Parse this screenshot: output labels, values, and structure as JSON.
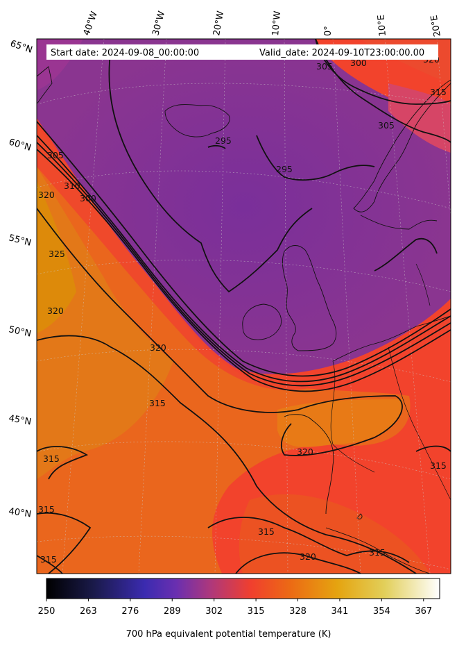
{
  "header": {
    "start_date": "Start date: 2024-09-08_00:00:00",
    "valid_date": "Valid_date: 2024-09-10T23:00:00.00"
  },
  "map": {
    "projection": "conic",
    "longitude_labels": [
      "40°W",
      "30°W",
      "20°W",
      "10°W",
      "0°",
      "10°E",
      "20°E"
    ],
    "latitude_labels": [
      "65°N",
      "60°N",
      "55°N",
      "50°N",
      "45°N",
      "40°N"
    ],
    "contour_labels": [
      "295",
      "295",
      "300",
      "305",
      "305",
      "310",
      "315",
      "315",
      "315",
      "315",
      "315",
      "315",
      "315",
      "320",
      "320",
      "320",
      "320",
      "320",
      "325",
      "305",
      "320",
      "300",
      "315"
    ],
    "field_colors": {
      "low": "#7e2d96",
      "mid": "#f03f2e",
      "high": "#e4781a",
      "warm": "#e08a0a"
    }
  },
  "colorbar": {
    "ticks": [
      "250",
      "263",
      "276",
      "289",
      "302",
      "315",
      "328",
      "341",
      "354",
      "367"
    ],
    "label": "700 hPa equivalent potential temperature (K)",
    "colormap": "CMRmap",
    "range": [
      250,
      372
    ]
  }
}
